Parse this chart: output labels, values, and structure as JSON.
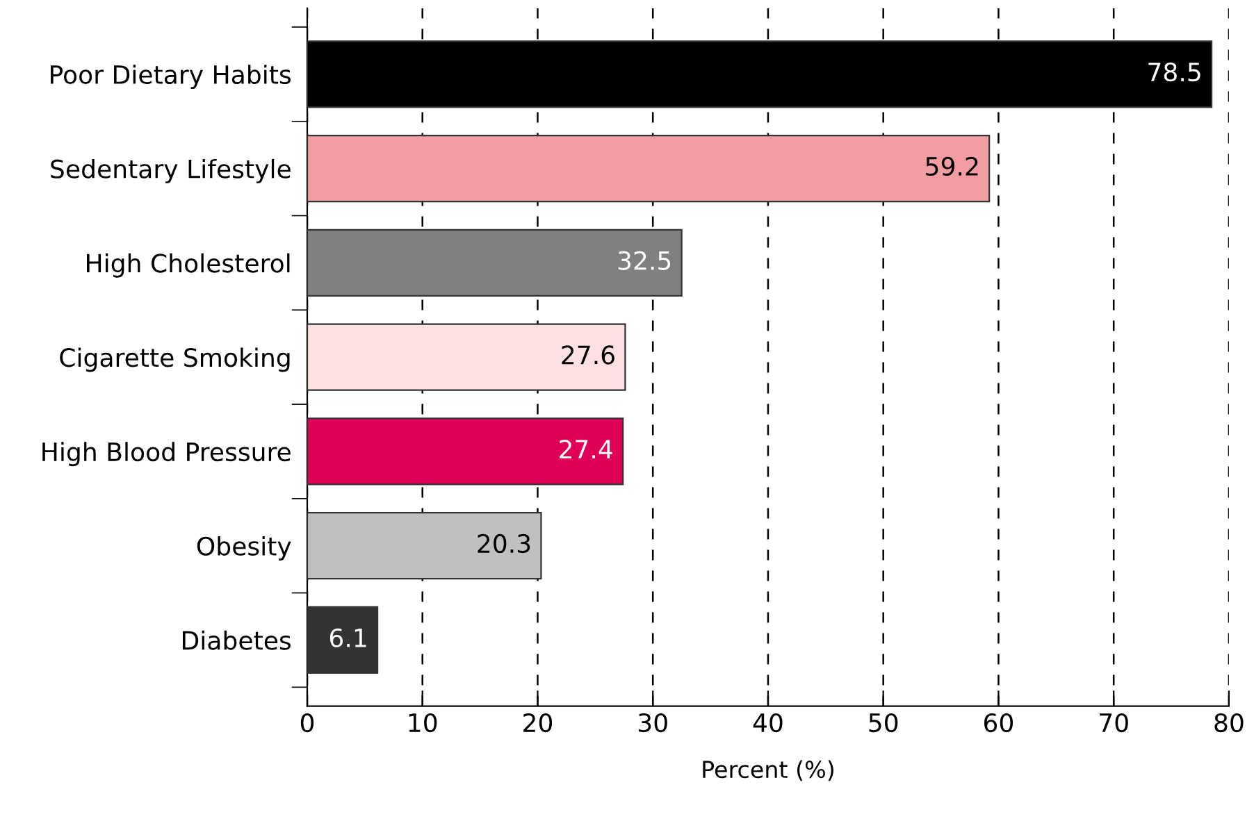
{
  "chart_data": {
    "type": "bar",
    "orientation": "horizontal",
    "xlabel": "Percent (%)",
    "categories": [
      "Poor Dietary Habits",
      "Sedentary Lifestyle",
      "High Cholesterol",
      "Cigarette Smoking",
      "High Blood Pressure",
      "Obesity",
      "Diabetes"
    ],
    "values": [
      78.5,
      59.2,
      32.5,
      27.6,
      27.4,
      20.3,
      6.1
    ],
    "colors": [
      "#000000",
      "#f29ca3",
      "#808080",
      "#fde0e0",
      "#e0005a",
      "#c0c0c0",
      "#333333"
    ],
    "xlim": [
      0,
      80
    ],
    "xticks": [
      0,
      10,
      20,
      30,
      40,
      50,
      60,
      70,
      80
    ],
    "grid": "x",
    "data_labels": true,
    "line_style": "dashed"
  }
}
